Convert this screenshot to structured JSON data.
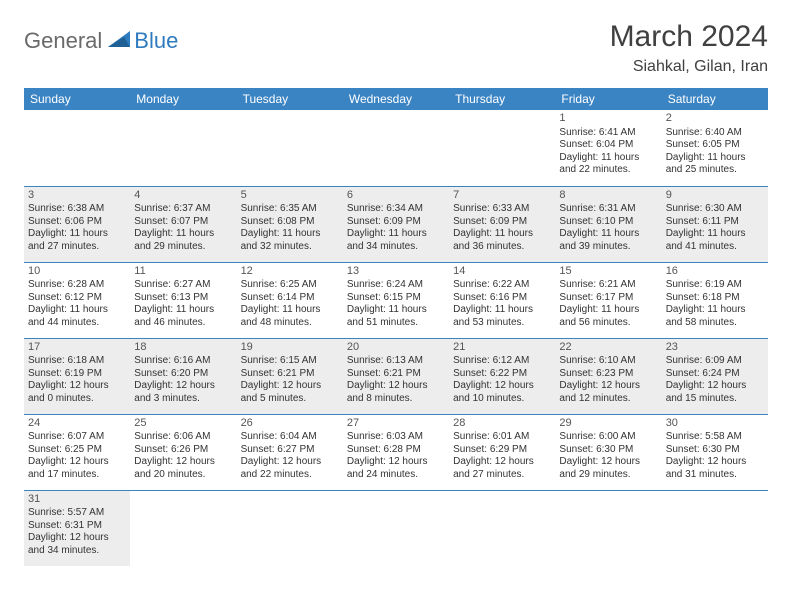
{
  "logo": {
    "general": "General",
    "blue": "Blue"
  },
  "title": "March 2024",
  "location": "Siahkal, Gilan, Iran",
  "header_color": "#3b84c4",
  "shade_color": "#ededed",
  "row_border_color": "#3b84c4",
  "text_color": "#333333",
  "daynum_color": "#555555",
  "title_color": "#404040",
  "logo_gray": "#6a6a6a",
  "logo_blue": "#2f7bbf",
  "day_headers": [
    "Sunday",
    "Monday",
    "Tuesday",
    "Wednesday",
    "Thursday",
    "Friday",
    "Saturday"
  ],
  "weeks": [
    [
      null,
      null,
      null,
      null,
      null,
      {
        "n": "1",
        "sr": "Sunrise: 6:41 AM",
        "ss": "Sunset: 6:04 PM",
        "d1": "Daylight: 11 hours",
        "d2": "and 22 minutes."
      },
      {
        "n": "2",
        "sr": "Sunrise: 6:40 AM",
        "ss": "Sunset: 6:05 PM",
        "d1": "Daylight: 11 hours",
        "d2": "and 25 minutes."
      }
    ],
    [
      {
        "n": "3",
        "sr": "Sunrise: 6:38 AM",
        "ss": "Sunset: 6:06 PM",
        "d1": "Daylight: 11 hours",
        "d2": "and 27 minutes."
      },
      {
        "n": "4",
        "sr": "Sunrise: 6:37 AM",
        "ss": "Sunset: 6:07 PM",
        "d1": "Daylight: 11 hours",
        "d2": "and 29 minutes."
      },
      {
        "n": "5",
        "sr": "Sunrise: 6:35 AM",
        "ss": "Sunset: 6:08 PM",
        "d1": "Daylight: 11 hours",
        "d2": "and 32 minutes."
      },
      {
        "n": "6",
        "sr": "Sunrise: 6:34 AM",
        "ss": "Sunset: 6:09 PM",
        "d1": "Daylight: 11 hours",
        "d2": "and 34 minutes."
      },
      {
        "n": "7",
        "sr": "Sunrise: 6:33 AM",
        "ss": "Sunset: 6:09 PM",
        "d1": "Daylight: 11 hours",
        "d2": "and 36 minutes."
      },
      {
        "n": "8",
        "sr": "Sunrise: 6:31 AM",
        "ss": "Sunset: 6:10 PM",
        "d1": "Daylight: 11 hours",
        "d2": "and 39 minutes."
      },
      {
        "n": "9",
        "sr": "Sunrise: 6:30 AM",
        "ss": "Sunset: 6:11 PM",
        "d1": "Daylight: 11 hours",
        "d2": "and 41 minutes."
      }
    ],
    [
      {
        "n": "10",
        "sr": "Sunrise: 6:28 AM",
        "ss": "Sunset: 6:12 PM",
        "d1": "Daylight: 11 hours",
        "d2": "and 44 minutes."
      },
      {
        "n": "11",
        "sr": "Sunrise: 6:27 AM",
        "ss": "Sunset: 6:13 PM",
        "d1": "Daylight: 11 hours",
        "d2": "and 46 minutes."
      },
      {
        "n": "12",
        "sr": "Sunrise: 6:25 AM",
        "ss": "Sunset: 6:14 PM",
        "d1": "Daylight: 11 hours",
        "d2": "and 48 minutes."
      },
      {
        "n": "13",
        "sr": "Sunrise: 6:24 AM",
        "ss": "Sunset: 6:15 PM",
        "d1": "Daylight: 11 hours",
        "d2": "and 51 minutes."
      },
      {
        "n": "14",
        "sr": "Sunrise: 6:22 AM",
        "ss": "Sunset: 6:16 PM",
        "d1": "Daylight: 11 hours",
        "d2": "and 53 minutes."
      },
      {
        "n": "15",
        "sr": "Sunrise: 6:21 AM",
        "ss": "Sunset: 6:17 PM",
        "d1": "Daylight: 11 hours",
        "d2": "and 56 minutes."
      },
      {
        "n": "16",
        "sr": "Sunrise: 6:19 AM",
        "ss": "Sunset: 6:18 PM",
        "d1": "Daylight: 11 hours",
        "d2": "and 58 minutes."
      }
    ],
    [
      {
        "n": "17",
        "sr": "Sunrise: 6:18 AM",
        "ss": "Sunset: 6:19 PM",
        "d1": "Daylight: 12 hours",
        "d2": "and 0 minutes."
      },
      {
        "n": "18",
        "sr": "Sunrise: 6:16 AM",
        "ss": "Sunset: 6:20 PM",
        "d1": "Daylight: 12 hours",
        "d2": "and 3 minutes."
      },
      {
        "n": "19",
        "sr": "Sunrise: 6:15 AM",
        "ss": "Sunset: 6:21 PM",
        "d1": "Daylight: 12 hours",
        "d2": "and 5 minutes."
      },
      {
        "n": "20",
        "sr": "Sunrise: 6:13 AM",
        "ss": "Sunset: 6:21 PM",
        "d1": "Daylight: 12 hours",
        "d2": "and 8 minutes."
      },
      {
        "n": "21",
        "sr": "Sunrise: 6:12 AM",
        "ss": "Sunset: 6:22 PM",
        "d1": "Daylight: 12 hours",
        "d2": "and 10 minutes."
      },
      {
        "n": "22",
        "sr": "Sunrise: 6:10 AM",
        "ss": "Sunset: 6:23 PM",
        "d1": "Daylight: 12 hours",
        "d2": "and 12 minutes."
      },
      {
        "n": "23",
        "sr": "Sunrise: 6:09 AM",
        "ss": "Sunset: 6:24 PM",
        "d1": "Daylight: 12 hours",
        "d2": "and 15 minutes."
      }
    ],
    [
      {
        "n": "24",
        "sr": "Sunrise: 6:07 AM",
        "ss": "Sunset: 6:25 PM",
        "d1": "Daylight: 12 hours",
        "d2": "and 17 minutes."
      },
      {
        "n": "25",
        "sr": "Sunrise: 6:06 AM",
        "ss": "Sunset: 6:26 PM",
        "d1": "Daylight: 12 hours",
        "d2": "and 20 minutes."
      },
      {
        "n": "26",
        "sr": "Sunrise: 6:04 AM",
        "ss": "Sunset: 6:27 PM",
        "d1": "Daylight: 12 hours",
        "d2": "and 22 minutes."
      },
      {
        "n": "27",
        "sr": "Sunrise: 6:03 AM",
        "ss": "Sunset: 6:28 PM",
        "d1": "Daylight: 12 hours",
        "d2": "and 24 minutes."
      },
      {
        "n": "28",
        "sr": "Sunrise: 6:01 AM",
        "ss": "Sunset: 6:29 PM",
        "d1": "Daylight: 12 hours",
        "d2": "and 27 minutes."
      },
      {
        "n": "29",
        "sr": "Sunrise: 6:00 AM",
        "ss": "Sunset: 6:30 PM",
        "d1": "Daylight: 12 hours",
        "d2": "and 29 minutes."
      },
      {
        "n": "30",
        "sr": "Sunrise: 5:58 AM",
        "ss": "Sunset: 6:30 PM",
        "d1": "Daylight: 12 hours",
        "d2": "and 31 minutes."
      }
    ],
    [
      {
        "n": "31",
        "sr": "Sunrise: 5:57 AM",
        "ss": "Sunset: 6:31 PM",
        "d1": "Daylight: 12 hours",
        "d2": "and 34 minutes."
      },
      null,
      null,
      null,
      null,
      null,
      null
    ]
  ]
}
